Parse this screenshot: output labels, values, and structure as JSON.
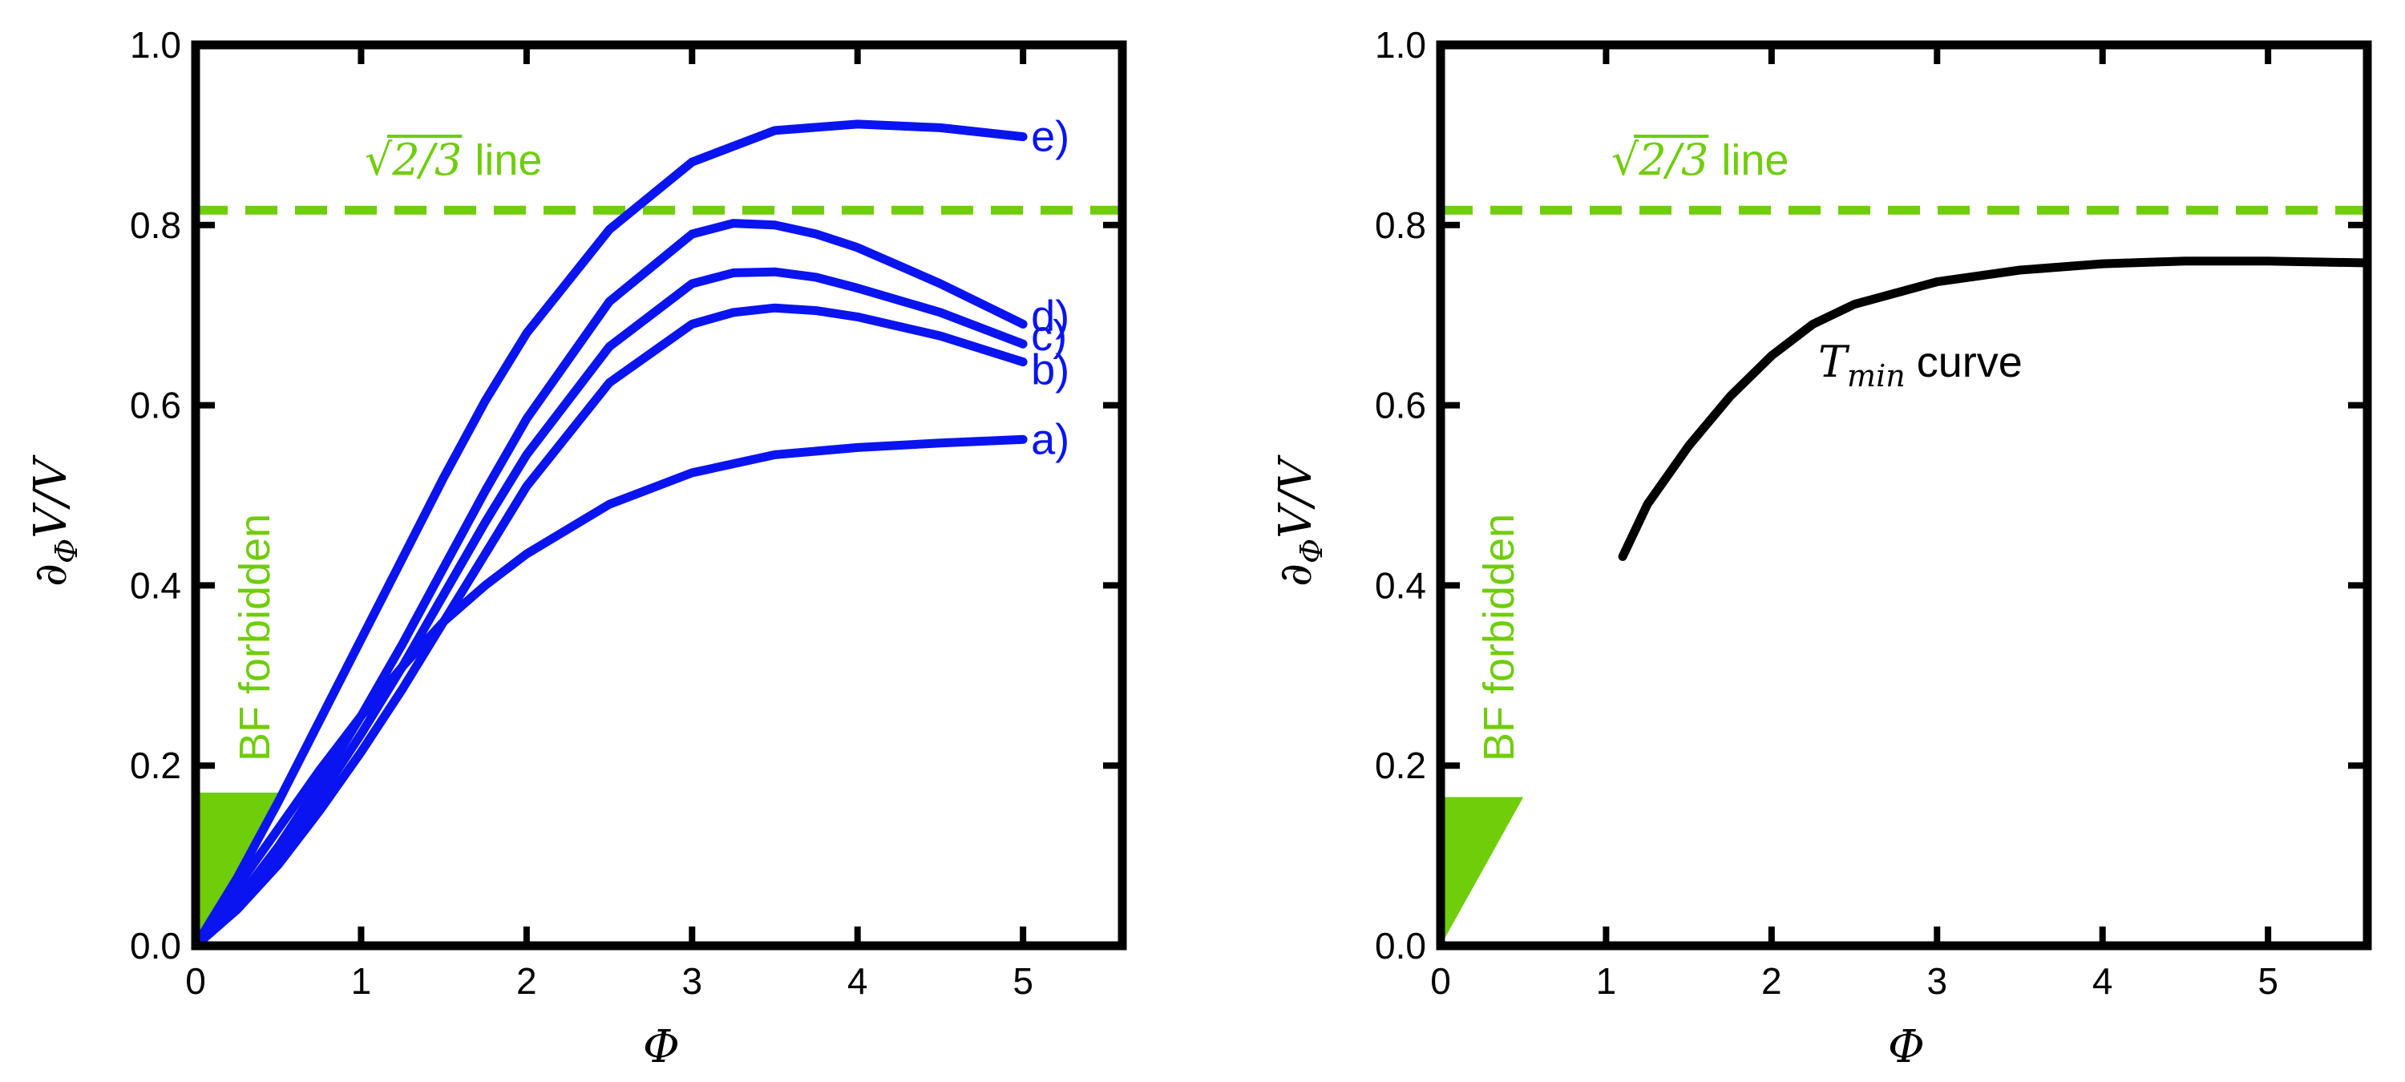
{
  "chart_data": [
    {
      "type": "line",
      "title": "",
      "xlabel": "Φ",
      "ylabel": {
        "main": "∂",
        "sub": "Φ",
        "rest": "V/V"
      },
      "xlim": [
        0,
        5.6
      ],
      "ylim": [
        0,
        1.0
      ],
      "x_ticks": [
        "0",
        "1",
        "2",
        "3",
        "4",
        "5"
      ],
      "y_ticks": [
        "0.0",
        "0.2",
        "0.4",
        "0.6",
        "0.8",
        "1.0"
      ],
      "grid": false,
      "colors": {
        "curves": "#0a14f0",
        "reference": "#6fcd0a"
      },
      "reference_line": {
        "y": 0.8165,
        "style": "dashed",
        "label_math": "√2/3",
        "label_text": "line"
      },
      "forbidden_region": {
        "label": "BF forbidden",
        "polygon": [
          [
            0,
            0
          ],
          [
            0,
            0.17
          ],
          [
            0.5,
            0.17
          ]
        ]
      },
      "series": [
        {
          "name": "a)",
          "x": [
            0,
            0.25,
            0.5,
            0.75,
            1.0,
            1.25,
            1.5,
            1.75,
            2.0,
            2.5,
            3.0,
            3.5,
            4.0,
            4.5,
            5.0
          ],
          "values": [
            0,
            0.065,
            0.13,
            0.195,
            0.255,
            0.31,
            0.36,
            0.4,
            0.435,
            0.49,
            0.525,
            0.545,
            0.553,
            0.558,
            0.562
          ]
        },
        {
          "name": "b)",
          "x": [
            0,
            0.25,
            0.5,
            0.75,
            1.0,
            1.25,
            1.5,
            1.75,
            2.0,
            2.5,
            3.0,
            3.25,
            3.5,
            3.75,
            4.0,
            4.5,
            5.0
          ],
          "values": [
            0,
            0.04,
            0.09,
            0.15,
            0.215,
            0.285,
            0.36,
            0.435,
            0.51,
            0.625,
            0.69,
            0.703,
            0.708,
            0.705,
            0.698,
            0.677,
            0.648
          ]
        },
        {
          "name": "c)",
          "x": [
            0,
            0.25,
            0.5,
            0.75,
            1.0,
            1.25,
            1.5,
            1.75,
            2.0,
            2.5,
            3.0,
            3.25,
            3.5,
            3.75,
            4.0,
            4.5,
            5.0
          ],
          "values": [
            0,
            0.045,
            0.1,
            0.165,
            0.235,
            0.31,
            0.39,
            0.47,
            0.545,
            0.665,
            0.735,
            0.747,
            0.748,
            0.742,
            0.73,
            0.703,
            0.668
          ]
        },
        {
          "name": "d)",
          "x": [
            0,
            0.25,
            0.5,
            0.75,
            1.0,
            1.25,
            1.5,
            1.75,
            2.0,
            2.5,
            3.0,
            3.25,
            3.5,
            3.75,
            4.0,
            4.5,
            5.0
          ],
          "values": [
            0,
            0.05,
            0.11,
            0.18,
            0.255,
            0.335,
            0.42,
            0.505,
            0.585,
            0.715,
            0.79,
            0.802,
            0.8,
            0.79,
            0.775,
            0.735,
            0.69
          ]
        },
        {
          "name": "e)",
          "x": [
            0,
            0.25,
            0.5,
            0.75,
            1.0,
            1.25,
            1.5,
            1.75,
            2.0,
            2.5,
            3.0,
            3.5,
            4.0,
            4.5,
            5.0
          ],
          "values": [
            0,
            0.075,
            0.16,
            0.25,
            0.34,
            0.43,
            0.52,
            0.605,
            0.68,
            0.795,
            0.87,
            0.905,
            0.912,
            0.908,
            0.898
          ]
        }
      ]
    },
    {
      "type": "line",
      "title": "",
      "xlabel": "Φ",
      "ylabel": {
        "main": "∂",
        "sub": "Φ",
        "rest": "V/V"
      },
      "xlim": [
        0,
        5.6
      ],
      "ylim": [
        0,
        1.0
      ],
      "x_ticks": [
        "0",
        "1",
        "2",
        "3",
        "4",
        "5"
      ],
      "y_ticks": [
        "0.0",
        "0.2",
        "0.4",
        "0.6",
        "0.8",
        "1.0"
      ],
      "grid": false,
      "colors": {
        "curves": "#000000",
        "reference": "#6fcd0a"
      },
      "reference_line": {
        "y": 0.8165,
        "style": "dashed",
        "label_math": "√2/3",
        "label_text": "line"
      },
      "forbidden_region": {
        "label": "BF forbidden",
        "polygon": [
          [
            0,
            0
          ],
          [
            0,
            0.165
          ],
          [
            0.5,
            0.165
          ]
        ]
      },
      "series": [
        {
          "name": "",
          "label_math": "T",
          "label_sub": "min",
          "label_text": "curve",
          "x": [
            1.1,
            1.25,
            1.5,
            1.75,
            2.0,
            2.25,
            2.5,
            3.0,
            3.5,
            4.0,
            4.5,
            5.0,
            5.6
          ],
          "values": [
            0.432,
            0.49,
            0.555,
            0.61,
            0.655,
            0.69,
            0.712,
            0.737,
            0.75,
            0.757,
            0.76,
            0.76,
            0.758
          ]
        }
      ]
    }
  ]
}
